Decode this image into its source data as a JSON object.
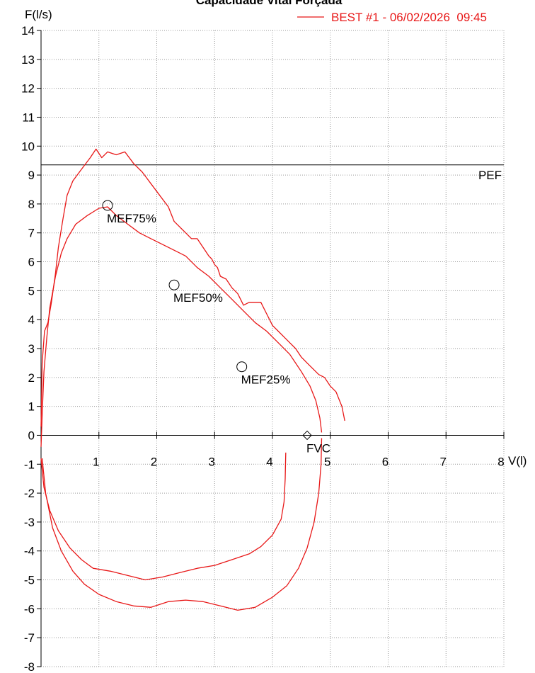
{
  "chart_data": {
    "type": "line",
    "title": "Capacidade Vital Forçada",
    "xlabel": "V(l)",
    "ylabel": "F(l/s)",
    "xlim": [
      0,
      8
    ],
    "ylim": [
      -8,
      14
    ],
    "grid": true,
    "legend_position": "top-right",
    "x_ticks": [
      "1",
      "2",
      "3",
      "4",
      "5",
      "6",
      "7",
      "8"
    ],
    "y_ticks": [
      "14",
      "13",
      "12",
      "11",
      "10",
      "9",
      "8",
      "7",
      "6",
      "5",
      "4",
      "3",
      "2",
      "1",
      "0",
      "-1",
      "-2",
      "-3",
      "-4",
      "-5",
      "-6",
      "-7",
      "-8"
    ],
    "colors": {
      "curve": "#e81818",
      "title": "#000000",
      "legend": "#e81818"
    },
    "series": [
      {
        "name": "BEST #1 - 06/02/2026  09:45",
        "trials": [
          {
            "expiration": [
              [
                0,
                0.3
              ],
              [
                0.02,
                2.5
              ],
              [
                0.06,
                3.6
              ],
              [
                0.12,
                3.9
              ],
              [
                0.18,
                4.6
              ],
              [
                0.25,
                5.6
              ],
              [
                0.3,
                6.5
              ],
              [
                0.38,
                7.5
              ],
              [
                0.45,
                8.3
              ],
              [
                0.55,
                8.8
              ],
              [
                0.7,
                9.2
              ],
              [
                0.85,
                9.6
              ],
              [
                0.95,
                9.9
              ],
              [
                1.05,
                9.6
              ],
              [
                1.15,
                9.8
              ],
              [
                1.3,
                9.7
              ],
              [
                1.45,
                9.8
              ],
              [
                1.6,
                9.4
              ],
              [
                1.75,
                9.1
              ],
              [
                1.9,
                8.7
              ],
              [
                2.05,
                8.3
              ],
              [
                2.2,
                7.9
              ],
              [
                2.3,
                7.4
              ],
              [
                2.4,
                7.2
              ],
              [
                2.5,
                7.0
              ],
              [
                2.6,
                6.8
              ],
              [
                2.7,
                6.8
              ],
              [
                2.8,
                6.5
              ],
              [
                2.9,
                6.2
              ],
              [
                2.95,
                6.1
              ],
              [
                3.0,
                5.9
              ],
              [
                3.05,
                5.8
              ],
              [
                3.1,
                5.5
              ],
              [
                3.2,
                5.4
              ],
              [
                3.3,
                5.1
              ],
              [
                3.4,
                4.9
              ],
              [
                3.5,
                4.5
              ],
              [
                3.6,
                4.6
              ],
              [
                3.7,
                4.6
              ],
              [
                3.8,
                4.6
              ],
              [
                3.9,
                4.2
              ],
              [
                4.0,
                3.8
              ],
              [
                4.1,
                3.6
              ],
              [
                4.2,
                3.4
              ],
              [
                4.3,
                3.2
              ],
              [
                4.4,
                3.0
              ],
              [
                4.5,
                2.7
              ],
              [
                4.6,
                2.5
              ],
              [
                4.7,
                2.3
              ],
              [
                4.8,
                2.1
              ],
              [
                4.9,
                2.0
              ],
              [
                5.0,
                1.7
              ],
              [
                5.1,
                1.5
              ],
              [
                5.2,
                1.0
              ],
              [
                5.25,
                0.5
              ]
            ],
            "inspiration": [
              [
                0,
                -0.8
              ],
              [
                0.05,
                -1.8
              ],
              [
                0.15,
                -2.6
              ],
              [
                0.3,
                -3.3
              ],
              [
                0.5,
                -3.9
              ],
              [
                0.7,
                -4.3
              ],
              [
                0.9,
                -4.6
              ],
              [
                1.2,
                -4.7
              ],
              [
                1.5,
                -4.85
              ],
              [
                1.8,
                -5.0
              ],
              [
                2.1,
                -4.9
              ],
              [
                2.4,
                -4.75
              ],
              [
                2.7,
                -4.6
              ],
              [
                3.0,
                -4.5
              ],
              [
                3.3,
                -4.3
              ],
              [
                3.6,
                -4.1
              ],
              [
                3.8,
                -3.85
              ],
              [
                4.0,
                -3.45
              ],
              [
                4.15,
                -2.9
              ],
              [
                4.2,
                -2.3
              ],
              [
                4.22,
                -1.5
              ],
              [
                4.23,
                -0.6
              ]
            ]
          },
          {
            "expiration": [
              [
                0,
                -0.4
              ],
              [
                0.02,
                0.7
              ],
              [
                0.05,
                2.2
              ],
              [
                0.1,
                3.4
              ],
              [
                0.15,
                4.4
              ],
              [
                0.25,
                5.5
              ],
              [
                0.35,
                6.3
              ],
              [
                0.45,
                6.8
              ],
              [
                0.6,
                7.3
              ],
              [
                0.8,
                7.6
              ],
              [
                1.0,
                7.85
              ],
              [
                1.15,
                7.9
              ],
              [
                1.3,
                7.6
              ],
              [
                1.5,
                7.3
              ],
              [
                1.7,
                7.0
              ],
              [
                1.9,
                6.8
              ],
              [
                2.1,
                6.6
              ],
              [
                2.3,
                6.4
              ],
              [
                2.5,
                6.2
              ],
              [
                2.7,
                5.8
              ],
              [
                2.9,
                5.5
              ],
              [
                3.1,
                5.1
              ],
              [
                3.3,
                4.7
              ],
              [
                3.5,
                4.3
              ],
              [
                3.7,
                3.9
              ],
              [
                3.9,
                3.6
              ],
              [
                4.1,
                3.2
              ],
              [
                4.3,
                2.8
              ],
              [
                4.5,
                2.2
              ],
              [
                4.65,
                1.7
              ],
              [
                4.75,
                1.2
              ],
              [
                4.82,
                0.6
              ],
              [
                4.85,
                0.1
              ]
            ],
            "inspiration": [
              [
                4.85,
                -0.1
              ],
              [
                4.84,
                -1.0
              ],
              [
                4.8,
                -2.0
              ],
              [
                4.72,
                -3.0
              ],
              [
                4.6,
                -3.9
              ],
              [
                4.45,
                -4.6
              ],
              [
                4.25,
                -5.2
              ],
              [
                4.0,
                -5.6
              ],
              [
                3.7,
                -5.95
              ],
              [
                3.4,
                -6.05
              ],
              [
                3.1,
                -5.9
              ],
              [
                2.8,
                -5.75
              ],
              [
                2.5,
                -5.7
              ],
              [
                2.2,
                -5.75
              ],
              [
                1.9,
                -5.95
              ],
              [
                1.6,
                -5.9
              ],
              [
                1.3,
                -5.75
              ],
              [
                1.0,
                -5.5
              ],
              [
                0.75,
                -5.15
              ],
              [
                0.55,
                -4.7
              ],
              [
                0.35,
                -4.0
              ],
              [
                0.2,
                -3.2
              ],
              [
                0.08,
                -2.0
              ],
              [
                0.02,
                -0.8
              ]
            ]
          }
        ]
      }
    ],
    "reference_lines": [
      {
        "label": "PEF",
        "y": 9.35
      }
    ],
    "markers": [
      {
        "label": "MEF75%",
        "x": 1.15,
        "y": 7.95,
        "shape": "circle"
      },
      {
        "label": "MEF50%",
        "x": 2.3,
        "y": 5.2,
        "shape": "circle"
      },
      {
        "label": "MEF25%",
        "x": 3.47,
        "y": 2.37,
        "shape": "circle"
      },
      {
        "label": "FVC",
        "x": 4.6,
        "y": 0.0,
        "shape": "diamond"
      }
    ]
  }
}
